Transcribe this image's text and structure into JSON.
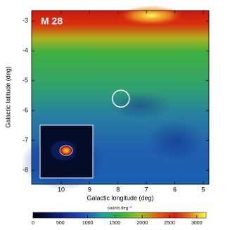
{
  "chart_data": {
    "type": "image",
    "annotation": "M 28",
    "xlabel": "Galactic longitude (deg)",
    "ylabel": "Galactic latitude (deg)",
    "xlim": [
      11.04,
      4.8
    ],
    "xticks": [
      10,
      9,
      8,
      7,
      6,
      5
    ],
    "ylim": [
      -8.47,
      -2.65
    ],
    "yticks": [
      -3,
      -4,
      -5,
      -6,
      -7,
      -8
    ],
    "marker": {
      "x": 7.9,
      "y": -5.6
    },
    "colorbar": {
      "label": "counts deg⁻²",
      "lim": [
        0,
        3170
      ],
      "ticks": [
        0,
        500,
        1000,
        1500,
        2000,
        2500,
        3000
      ]
    }
  }
}
